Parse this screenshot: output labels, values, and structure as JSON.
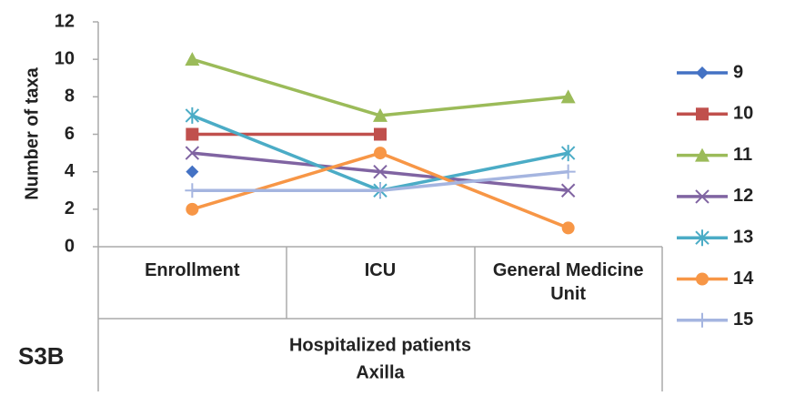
{
  "chart_data": {
    "type": "line",
    "y_label": "Number of taxa",
    "panel_label": "S3B",
    "group_label": [
      "Hospitalized patients",
      "Axilla"
    ],
    "categories": [
      "Enrollment",
      "ICU",
      "General Medicine Unit"
    ],
    "ylim": [
      0,
      12
    ],
    "yticks": [
      0,
      2,
      4,
      6,
      8,
      10,
      12
    ],
    "grid": false,
    "legend": "right",
    "series": [
      {
        "name": "9",
        "color": "#4472c4",
        "marker": "diamond",
        "values": [
          4,
          null,
          null
        ]
      },
      {
        "name": "10",
        "color": "#c0504d",
        "marker": "square",
        "values": [
          6,
          6,
          null
        ]
      },
      {
        "name": "11",
        "color": "#9bbb59",
        "marker": "triangle",
        "values": [
          10,
          7,
          8
        ]
      },
      {
        "name": "12",
        "color": "#8064a2",
        "marker": "x",
        "values": [
          5,
          4,
          3
        ]
      },
      {
        "name": "13",
        "color": "#4bacc6",
        "marker": "star",
        "values": [
          7,
          3,
          5
        ]
      },
      {
        "name": "14",
        "color": "#f79646",
        "marker": "circle",
        "values": [
          2,
          5,
          1
        ]
      },
      {
        "name": "15",
        "color": "#a5b5e0",
        "marker": "plus",
        "values": [
          3,
          3,
          4
        ]
      }
    ]
  }
}
